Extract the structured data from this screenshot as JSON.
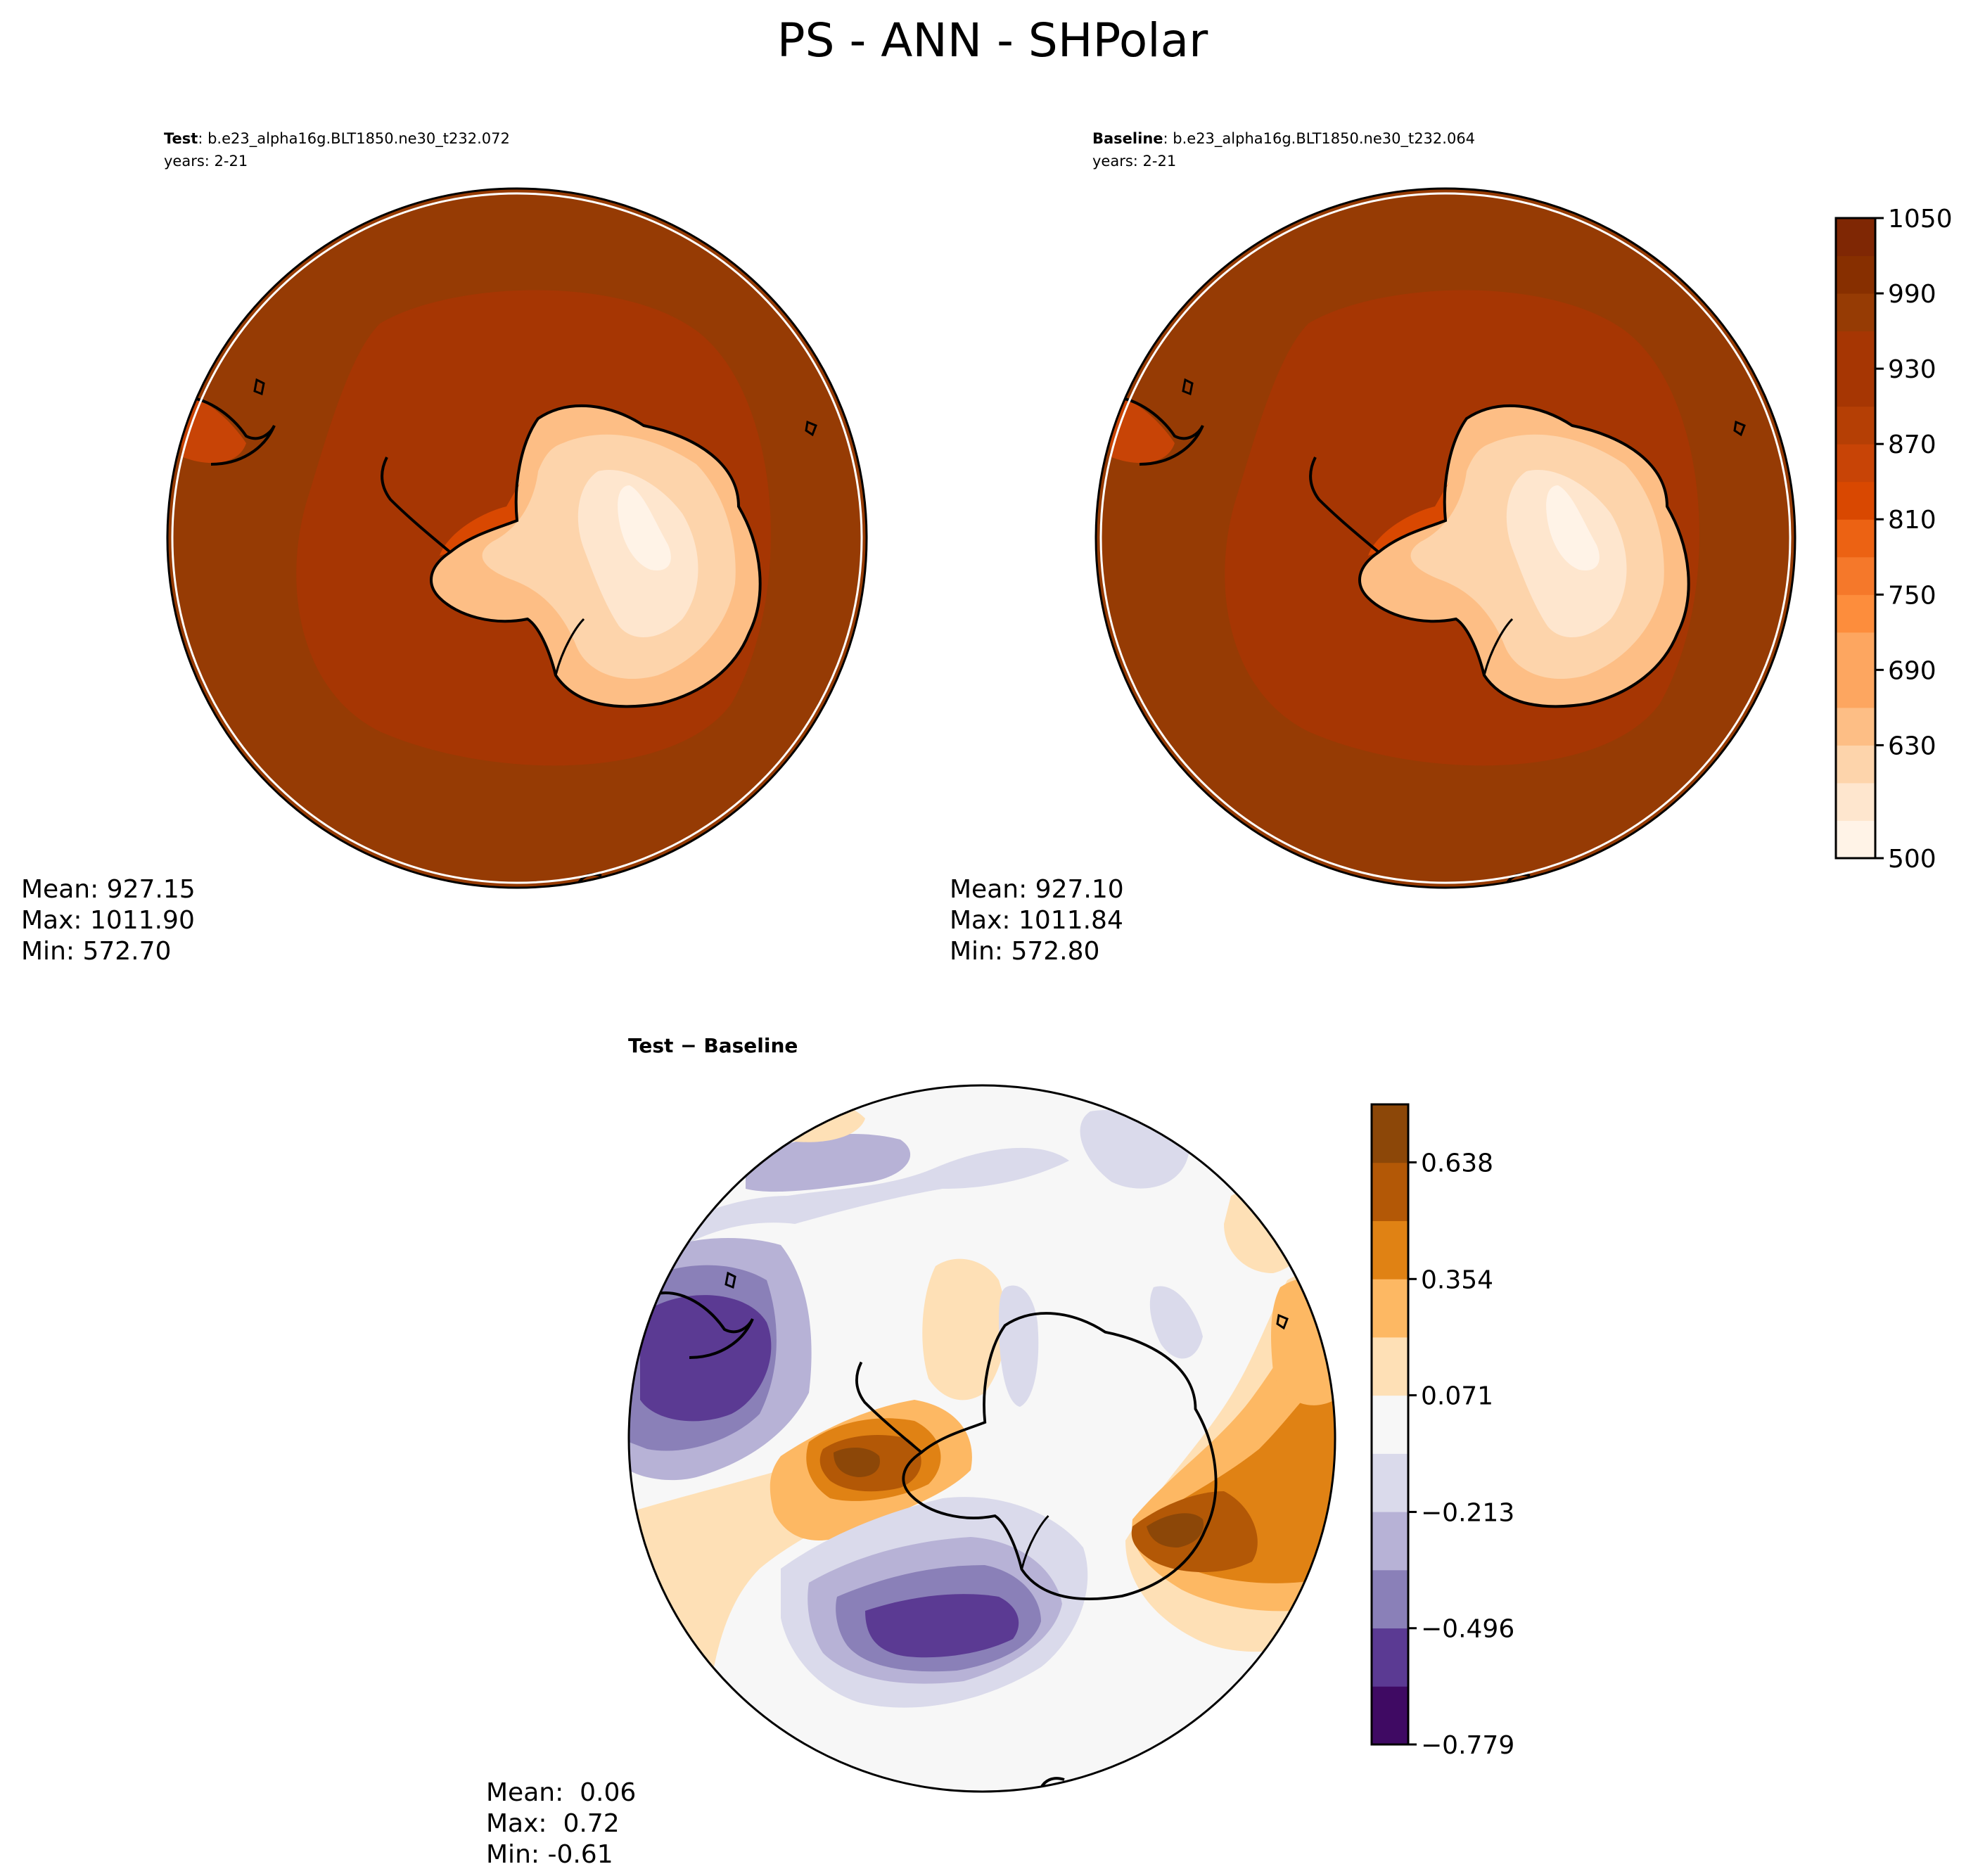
{
  "figure": {
    "title": "PS - ANN - SHPolar"
  },
  "panels": {
    "test": {
      "label_bold": "Test",
      "label_rest": ": b.e23_alpha16g.BLT1850.ne30_t232.072",
      "years": "years: 2-21",
      "stats": {
        "mean": "Mean: 927.15",
        "max": "Max: 1011.90",
        "min": "Min: 572.70"
      }
    },
    "baseline": {
      "label_bold": "Baseline",
      "label_rest": ": b.e23_alpha16g.BLT1850.ne30_t232.064",
      "years": "years: 2-21",
      "stats": {
        "mean": "Mean: 927.10",
        "max": "Max: 1011.84",
        "min": "Min: 572.80"
      }
    },
    "diff": {
      "label": "Test − Baseline",
      "stats": {
        "mean": "Mean:  0.06",
        "max": "Max:  0.72",
        "min": "Min: -0.61"
      }
    }
  },
  "colorbars": {
    "main": {
      "tick_labels": [
        "1050",
        "990",
        "930",
        "870",
        "810",
        "750",
        "690",
        "630",
        "500"
      ],
      "colors": [
        "#fff3e7",
        "#fee6ce",
        "#fdd4ab",
        "#fdbe85",
        "#fda660",
        "#fd8d3c",
        "#f5782a",
        "#ec6213",
        "#d94801",
        "#c84406",
        "#b53f05",
        "#a63603",
        "#963b04",
        "#872f00",
        "#7f2704"
      ]
    },
    "diff": {
      "tick_labels": [
        "0.638",
        "0.354",
        "0.071",
        "−0.213",
        "−0.496",
        "−0.779"
      ],
      "colors": [
        "#3f0a63",
        "#5b3a93",
        "#8a80b8",
        "#b7b2d6",
        "#dadaeb",
        "#f7f7f7",
        "#fee0b6",
        "#fdb863",
        "#e08214",
        "#b35806",
        "#8c4708"
      ]
    }
  },
  "chart_data": [
    {
      "type": "heatmap",
      "panel": "Test",
      "projection": "south polar stereographic",
      "title": "b.e23_alpha16g.BLT1850.ne30_t232.072",
      "subtitle": "years: 2-21",
      "stats": {
        "mean": 927.15,
        "max": 1011.9,
        "min": 572.7
      },
      "colorbar_range": [
        500,
        1050
      ]
    },
    {
      "type": "heatmap",
      "panel": "Baseline",
      "projection": "south polar stereographic",
      "title": "b.e23_alpha16g.BLT1850.ne30_t232.064",
      "subtitle": "years: 2-21",
      "stats": {
        "mean": 927.1,
        "max": 1011.84,
        "min": 572.8
      },
      "colorbar_range": [
        500,
        1050
      ],
      "colorbar_ticks": [
        500,
        630,
        690,
        750,
        810,
        870,
        930,
        990,
        1050
      ]
    },
    {
      "type": "heatmap",
      "panel": "Test - Baseline",
      "projection": "south polar stereographic",
      "stats": {
        "mean": 0.06,
        "max": 0.72,
        "min": -0.61
      },
      "colorbar_range": [
        -0.779,
        0.779
      ],
      "colorbar_ticks": [
        -0.779,
        -0.496,
        -0.213,
        0.071,
        0.354,
        0.638
      ]
    }
  ]
}
